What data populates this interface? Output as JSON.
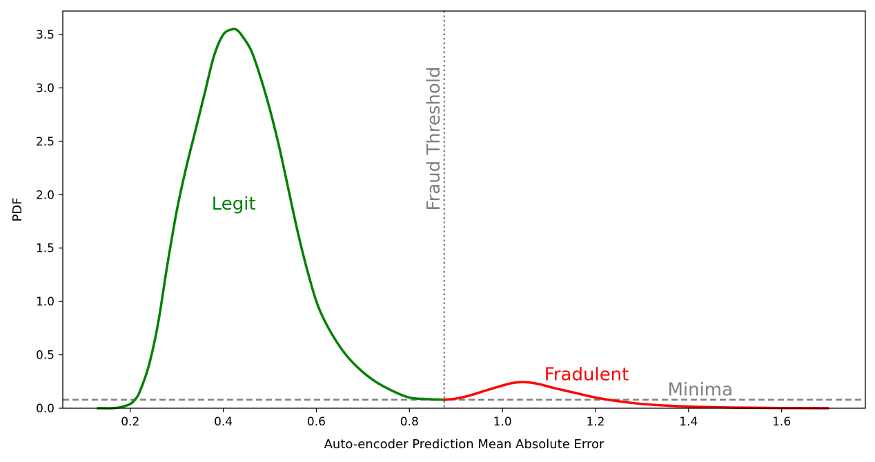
{
  "chart_data": {
    "type": "line",
    "title": "",
    "xlabel": "Auto-encoder Prediction Mean Absolute Error",
    "ylabel": "PDF",
    "xlim": [
      0.055,
      1.78
    ],
    "ylim": [
      0,
      3.72
    ],
    "grid": false,
    "xticks": [
      0.2,
      0.4,
      0.6,
      0.8,
      1.0,
      1.2,
      1.4,
      1.6
    ],
    "xtick_labels": [
      "0.2",
      "0.4",
      "0.6",
      "0.8",
      "1.0",
      "1.2",
      "1.4",
      "1.6"
    ],
    "yticks": [
      0.0,
      0.5,
      1.0,
      1.5,
      2.0,
      2.5,
      3.0,
      3.5
    ],
    "ytick_labels": [
      "0.0",
      "0.5",
      "1.0",
      "1.5",
      "2.0",
      "2.5",
      "3.0",
      "3.5"
    ],
    "series": [
      {
        "color": "#008000",
        "x": [
          0.13,
          0.16,
          0.18,
          0.2,
          0.21,
          0.22,
          0.24,
          0.26,
          0.28,
          0.3,
          0.32,
          0.34,
          0.36,
          0.38,
          0.4,
          0.42,
          0.43,
          0.44,
          0.46,
          0.48,
          0.5,
          0.52,
          0.54,
          0.56,
          0.58,
          0.6,
          0.62,
          0.65,
          0.68,
          0.72,
          0.76,
          0.8,
          0.84,
          0.875
        ],
        "y": [
          0.0,
          0.0,
          0.01,
          0.04,
          0.08,
          0.15,
          0.4,
          0.8,
          1.35,
          1.85,
          2.25,
          2.6,
          2.95,
          3.3,
          3.5,
          3.55,
          3.54,
          3.49,
          3.35,
          3.1,
          2.8,
          2.45,
          2.05,
          1.65,
          1.3,
          1.0,
          0.8,
          0.58,
          0.42,
          0.27,
          0.17,
          0.1,
          0.085,
          0.08
        ]
      },
      {
        "color": "#ff0000",
        "x": [
          0.875,
          0.9,
          0.93,
          0.96,
          0.99,
          1.02,
          1.04,
          1.06,
          1.08,
          1.11,
          1.15,
          1.2,
          1.25,
          1.3,
          1.35,
          1.4,
          1.45,
          1.5,
          1.55,
          1.6,
          1.65,
          1.7
        ],
        "y": [
          0.08,
          0.09,
          0.12,
          0.16,
          0.2,
          0.235,
          0.245,
          0.24,
          0.225,
          0.19,
          0.15,
          0.1,
          0.065,
          0.04,
          0.025,
          0.015,
          0.01,
          0.006,
          0.004,
          0.002,
          0.001,
          0.0
        ]
      }
    ],
    "threshold": {
      "x": 0.875,
      "label": "Fraud Threshold",
      "color": "#808080"
    },
    "minima": {
      "y": 0.08,
      "label": "Minima",
      "color": "#808080"
    },
    "annotations": {
      "legit": {
        "text": "Legit",
        "x": 0.375,
        "y": 1.86,
        "color": "#008000"
      },
      "fraud": {
        "text": "Fradulent",
        "x": 1.09,
        "y": 0.26,
        "color": "#ff0000"
      },
      "minima": {
        "text": "Minima",
        "x": 1.355,
        "y": 0.12,
        "color": "#808080"
      },
      "threshold": {
        "text": "Fraud Threshold",
        "x": 0.875,
        "y": 1.85,
        "color": "#808080"
      }
    }
  }
}
